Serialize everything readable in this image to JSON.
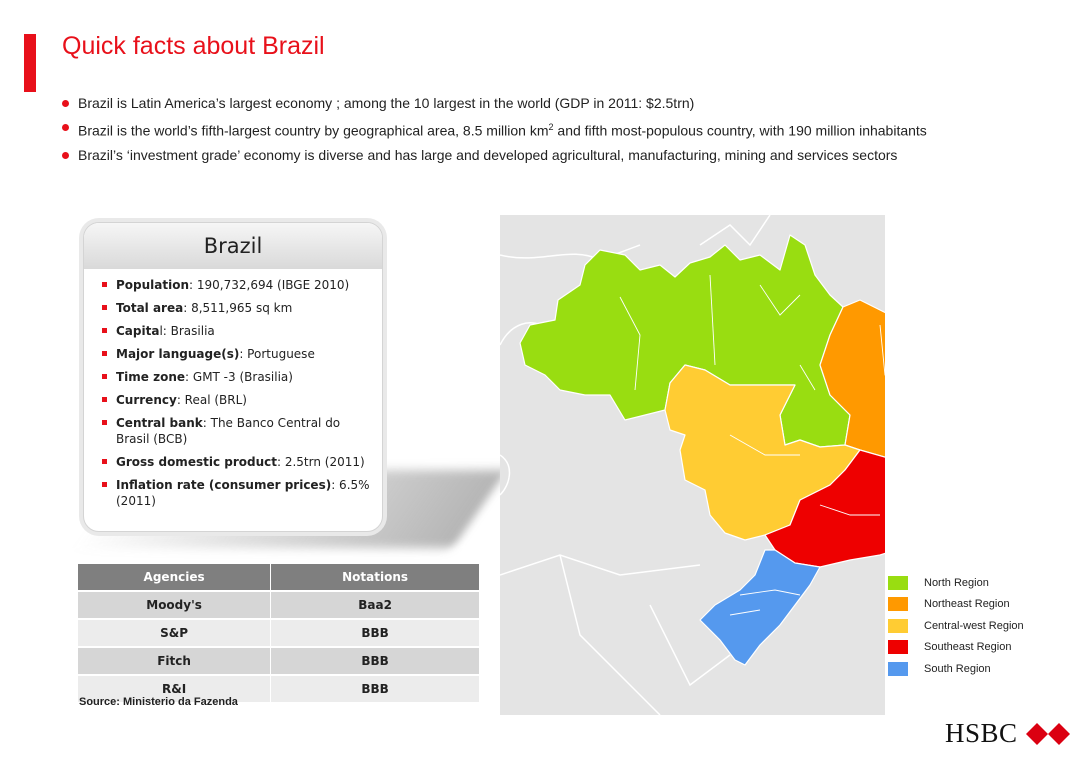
{
  "title": "Quick facts about Brazil",
  "bullets": [
    {
      "text": "Brazil is Latin America’s largest economy ; among the 10 largest in the world (GDP in 2011: $2.5trn)"
    },
    {
      "pre": "Brazil is the world’s fifth-largest country by geographical area, 8.5 million km",
      "sup": "2",
      "post": " and fifth most-populous country, with 190 million inhabitants"
    },
    {
      "text": "Brazil’s ‘investment grade’ economy is diverse and has large and developed agricultural, manufacturing, mining and services sectors"
    }
  ],
  "card": {
    "heading": "Brazil",
    "facts": [
      {
        "label": "Population",
        "value": ": 190,732,694 (IBGE 2010)"
      },
      {
        "label": "Total area",
        "value": ": 8,511,965 sq km"
      },
      {
        "label": "Capita",
        "value": "l: Brasilia"
      },
      {
        "label": "Major language(s)",
        "value": ": Portuguese"
      },
      {
        "label": "Time zone",
        "value": ": GMT -3 (Brasilia)"
      },
      {
        "label": "Currency",
        "value": ": Real (BRL)"
      },
      {
        "label": "Central bank",
        "value": ": The Banco Central do Brasil (BCB)"
      },
      {
        "label": "Gross domestic product",
        "value": ": 2.5trn (2011)"
      },
      {
        "label": "Inflation rate (consumer prices)",
        "value": ": 6.5% (2011)"
      }
    ]
  },
  "table": {
    "headers": [
      "Agencies",
      "Notations"
    ],
    "rows": [
      [
        "Moody's",
        "Baa2"
      ],
      [
        "S&P",
        "BBB"
      ],
      [
        "Fitch",
        "BBB"
      ],
      [
        "R&I",
        "BBB"
      ]
    ]
  },
  "source": "Source: Ministerio da Fazenda",
  "legend": [
    {
      "label": "North Region",
      "color": "#99dd11"
    },
    {
      "label": "Northeast Region",
      "color": "#ff9900"
    },
    {
      "label": "Central-west Region",
      "color": "#ffcc33"
    },
    {
      "label": "Southeast Region",
      "color": "#ee0000"
    },
    {
      "label": "South Region",
      "color": "#5599ee"
    }
  ],
  "logo": {
    "text": "HSBC",
    "icon": "hexagon-logo-icon",
    "color": "#db0011"
  }
}
